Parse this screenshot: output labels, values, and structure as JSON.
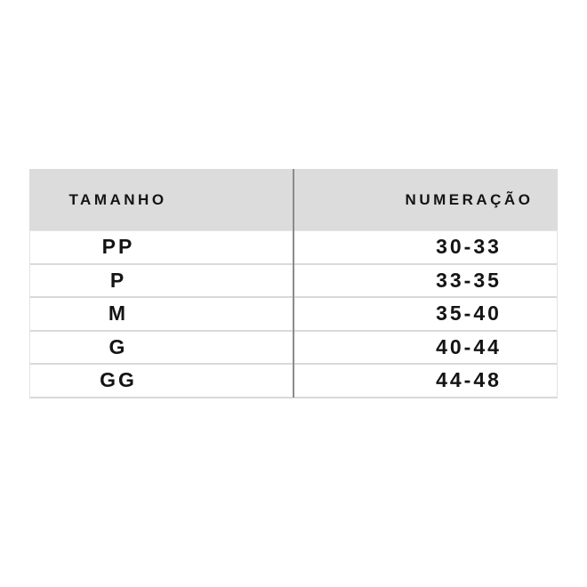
{
  "table": {
    "columns": [
      {
        "label": "TAMANHO"
      },
      {
        "label": "NUMERAÇÃO"
      }
    ],
    "rows": [
      {
        "size": "PP",
        "range": "30-33"
      },
      {
        "size": "P",
        "range": "33-35"
      },
      {
        "size": "M",
        "range": "35-40"
      },
      {
        "size": "G",
        "range": "40-44"
      },
      {
        "size": "GG",
        "range": "44-48"
      }
    ]
  },
  "chart_data": {
    "type": "table",
    "title": "",
    "columns": [
      "TAMANHO",
      "NUMERAÇÃO"
    ],
    "rows": [
      [
        "PP",
        "30-33"
      ],
      [
        "P",
        "33-35"
      ],
      [
        "M",
        "35-40"
      ],
      [
        "G",
        "40-44"
      ],
      [
        "GG",
        "44-48"
      ]
    ]
  },
  "colors": {
    "page_background": "#ffffff",
    "header_background": "#dcdcdc",
    "row_separator": "#d9d9d9",
    "column_divider": "#8c8c8c",
    "text": "#141414"
  }
}
